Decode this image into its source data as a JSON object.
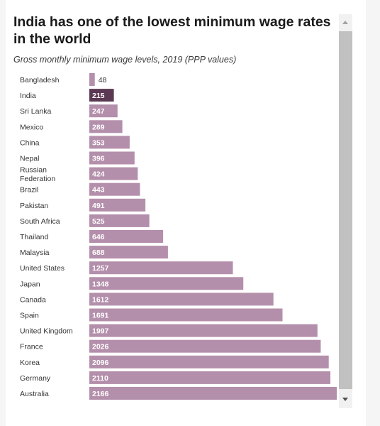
{
  "chart_data": {
    "type": "bar",
    "orientation": "horizontal",
    "title": "India has one of the lowest minimum wage rates in the world",
    "subtitle": "Gross monthly minimum wage levels, 2019 (PPP values)",
    "categories": [
      "Bangladesh",
      "India",
      "Sri Lanka",
      "Mexico",
      "China",
      "Nepal",
      "Russian Federation",
      "Brazil",
      "Pakistan",
      "South Africa",
      "Thailand",
      "Malaysia",
      "United States",
      "Japan",
      "Canada",
      "Spain",
      "United Kingdom",
      "France",
      "Korea",
      "Germany",
      "Australia"
    ],
    "values": [
      48,
      215,
      247,
      289,
      353,
      396,
      424,
      443,
      491,
      525,
      646,
      688,
      1257,
      1348,
      1612,
      1691,
      1997,
      2026,
      2096,
      2110,
      2166
    ],
    "highlight_category": "India",
    "colors": {
      "bar": "#b48fab",
      "highlight": "#5c3953"
    },
    "xlim": [
      0,
      2166
    ],
    "grid": false,
    "legend": "none"
  },
  "scrollbar": {
    "up_icon": "triangle-up-icon",
    "down_icon": "triangle-down-icon"
  }
}
